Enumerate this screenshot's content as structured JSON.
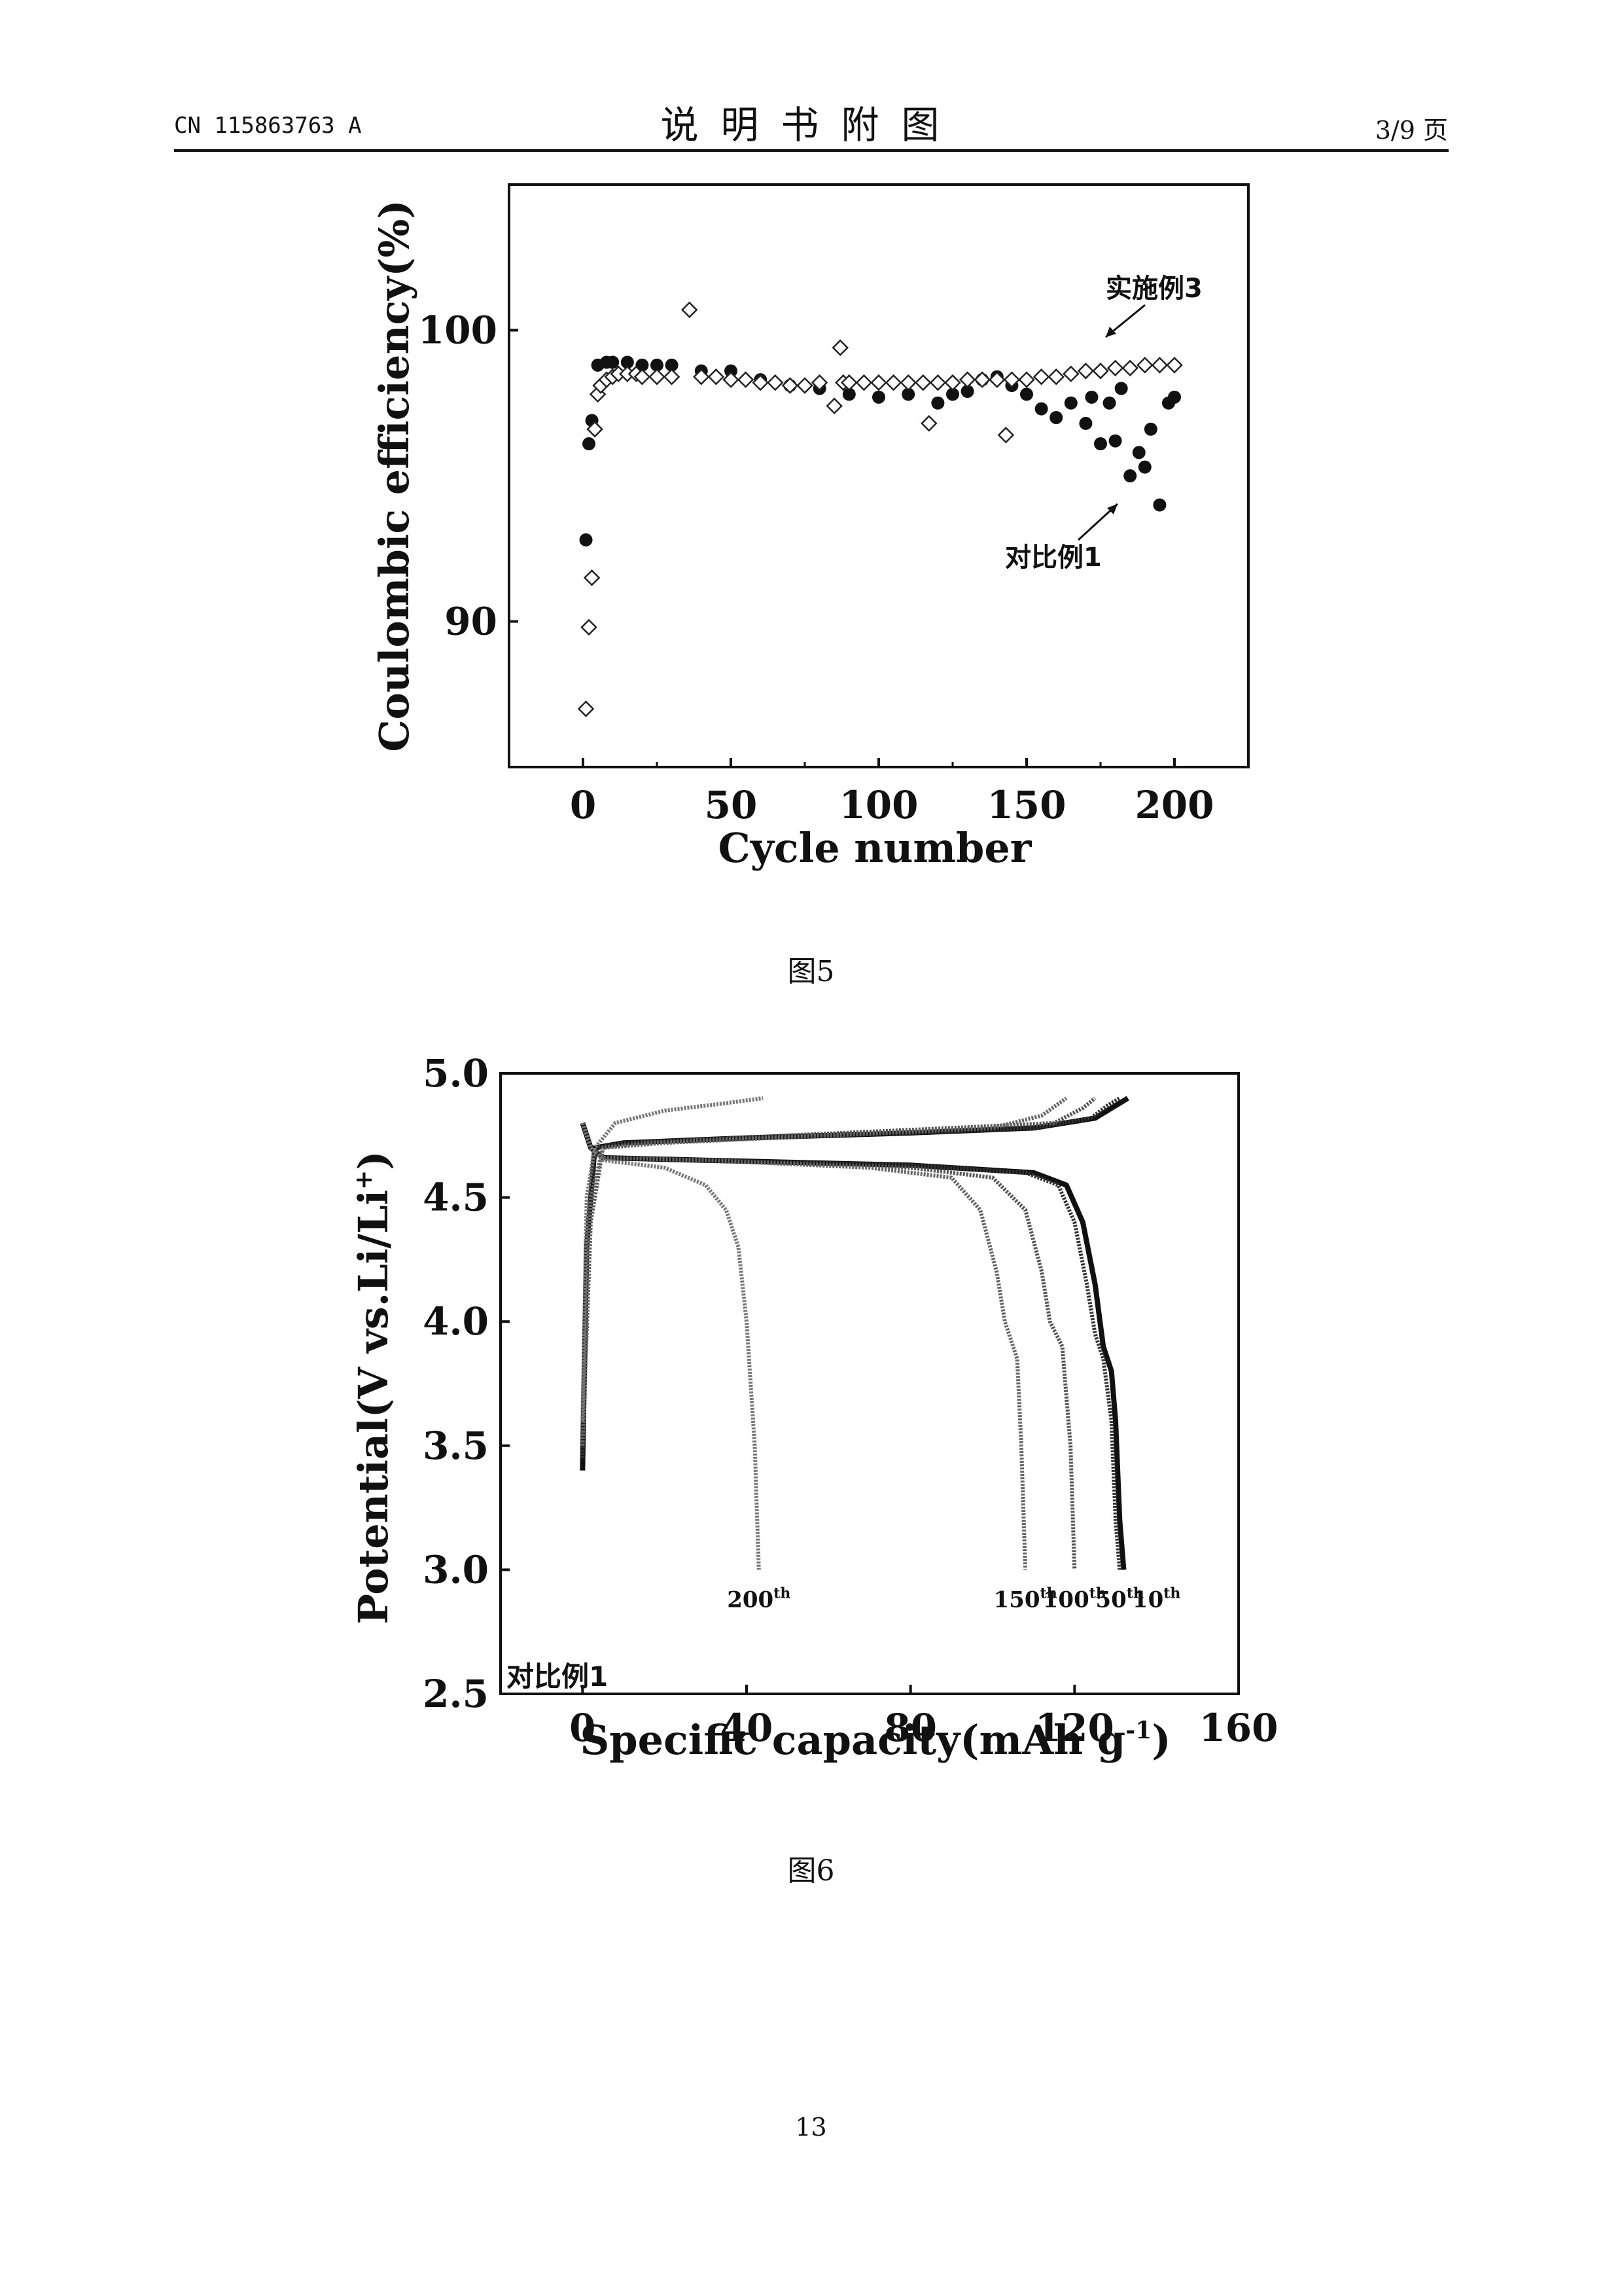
{
  "header": {
    "doc_number": "CN 115863763 A",
    "section_title": "说明书附图",
    "page_count": "3/9 页"
  },
  "figures": [
    {
      "caption": "图5",
      "chart_data": {
        "type": "scatter",
        "xlabel": "Cycle number",
        "ylabel": "Coulombic efficiency(%)",
        "xlim": [
          -25,
          225
        ],
        "ylim": [
          85,
          105
        ],
        "x_ticks": [
          "0",
          "50",
          "100",
          "150",
          "200"
        ],
        "y_ticks": [
          "90",
          "100"
        ],
        "annotations": [
          "实施例3",
          "对比例1"
        ],
        "series": [
          {
            "name": "实施例3",
            "marker": "open-diamond",
            "x": [
              1,
              2,
              3,
              4,
              5,
              6,
              8,
              10,
              12,
              15,
              18,
              20,
              25,
              30,
              36,
              40,
              45,
              50,
              55,
              60,
              65,
              70,
              75,
              80,
              85,
              87,
              88,
              90,
              95,
              100,
              105,
              110,
              115,
              117,
              120,
              125,
              130,
              135,
              140,
              143,
              145,
              150,
              155,
              160,
              165,
              170,
              175,
              180,
              185,
              190,
              195,
              200
            ],
            "y": [
              87.0,
              89.8,
              91.5,
              96.6,
              97.8,
              98.1,
              98.3,
              98.4,
              98.5,
              98.5,
              98.5,
              98.4,
              98.4,
              98.4,
              100.7,
              98.4,
              98.4,
              98.3,
              98.3,
              98.2,
              98.2,
              98.1,
              98.1,
              98.2,
              97.4,
              99.4,
              98.2,
              98.2,
              98.2,
              98.2,
              98.2,
              98.2,
              98.2,
              96.8,
              98.2,
              98.2,
              98.3,
              98.3,
              98.3,
              96.4,
              98.3,
              98.3,
              98.4,
              98.4,
              98.5,
              98.6,
              98.6,
              98.7,
              98.7,
              98.8,
              98.8,
              98.8
            ]
          },
          {
            "name": "对比例1",
            "marker": "filled-circle",
            "x": [
              1,
              2,
              3,
              5,
              8,
              10,
              15,
              20,
              25,
              30,
              40,
              50,
              60,
              70,
              80,
              90,
              100,
              110,
              120,
              125,
              130,
              135,
              140,
              145,
              150,
              155,
              160,
              165,
              170,
              172,
              175,
              178,
              180,
              182,
              185,
              188,
              190,
              192,
              195,
              198,
              200
            ],
            "y": [
              92.8,
              96.1,
              96.9,
              98.8,
              98.9,
              98.9,
              98.9,
              98.8,
              98.8,
              98.8,
              98.6,
              98.6,
              98.3,
              98.1,
              98.0,
              97.8,
              97.7,
              97.8,
              97.5,
              97.8,
              97.9,
              98.3,
              98.4,
              98.1,
              97.8,
              97.3,
              97.0,
              97.5,
              96.8,
              97.7,
              96.1,
              97.5,
              96.2,
              98.0,
              95.0,
              95.8,
              95.3,
              96.6,
              94.0,
              97.5,
              97.7
            ]
          }
        ]
      }
    },
    {
      "caption": "图6",
      "chart_data": {
        "type": "line",
        "xlabel": "Specific capacity(mAh g-1)",
        "ylabel": "Potential(V vs.Li/Li+)",
        "xlim": [
          -20,
          160
        ],
        "ylim": [
          2.5,
          5.0
        ],
        "x_ticks": [
          "0",
          "40",
          "80",
          "120",
          "160"
        ],
        "y_ticks": [
          "2.5",
          "3.0",
          "3.5",
          "4.0",
          "4.5",
          "5.0"
        ],
        "inset_label": "对比例1",
        "curve_labels": [
          {
            "cycle": "200",
            "suffix": "th",
            "x": 43
          },
          {
            "cycle": "150",
            "suffix": "th",
            "x": 108
          },
          {
            "cycle": "100",
            "suffix": "th",
            "x": 120
          },
          {
            "cycle": "50",
            "suffix": "th",
            "x": 131
          },
          {
            "cycle": "10",
            "suffix": "th",
            "x": 140
          }
        ],
        "series": [
          {
            "name": "10th",
            "charge": {
              "x": [
                0,
                1,
                3,
                10,
                40,
                80,
                110,
                125,
                130,
                133
              ],
              "y": [
                3.4,
                4.3,
                4.7,
                4.72,
                4.74,
                4.76,
                4.78,
                4.82,
                4.87,
                4.9
              ]
            },
            "discharge": {
              "x": [
                0,
                2,
                5,
                30,
                80,
                110,
                118,
                122,
                125,
                127,
                129,
                130,
                131,
                132
              ],
              "y": [
                4.8,
                4.7,
                4.66,
                4.65,
                4.63,
                4.6,
                4.55,
                4.4,
                4.15,
                3.9,
                3.8,
                3.6,
                3.2,
                3.0
              ]
            }
          },
          {
            "name": "50th",
            "charge": {
              "x": [
                0,
                1,
                3,
                10,
                40,
                80,
                110,
                124,
                128,
                131
              ],
              "y": [
                3.45,
                4.3,
                4.7,
                4.72,
                4.74,
                4.76,
                4.78,
                4.82,
                4.87,
                4.9
              ]
            },
            "discharge": {
              "x": [
                0,
                2,
                5,
                30,
                80,
                108,
                116,
                120,
                123,
                125,
                127,
                129,
                130,
                131
              ],
              "y": [
                4.8,
                4.7,
                4.66,
                4.65,
                4.63,
                4.6,
                4.55,
                4.4,
                4.15,
                3.95,
                3.85,
                3.6,
                3.2,
                3.0
              ]
            }
          },
          {
            "name": "100th",
            "charge": {
              "x": [
                0,
                2,
                5,
                15,
                50,
                90,
                115,
                122,
                125
              ],
              "y": [
                3.5,
                4.4,
                4.7,
                4.72,
                4.75,
                4.78,
                4.8,
                4.86,
                4.9
              ]
            },
            "discharge": {
              "x": [
                0,
                2,
                5,
                30,
                80,
                100,
                108,
                112,
                114,
                117,
                119,
                120
              ],
              "y": [
                4.8,
                4.7,
                4.66,
                4.65,
                4.62,
                4.58,
                4.45,
                4.2,
                4.0,
                3.9,
                3.5,
                3.0
              ]
            }
          },
          {
            "name": "150th",
            "charge": {
              "x": [
                0,
                2,
                5,
                20,
                60,
                100,
                112,
                118
              ],
              "y": [
                3.5,
                4.5,
                4.7,
                4.72,
                4.75,
                4.78,
                4.83,
                4.9
              ]
            },
            "discharge": {
              "x": [
                0,
                2,
                5,
                30,
                70,
                90,
                97,
                101,
                103,
                106,
                107,
                108
              ],
              "y": [
                4.8,
                4.7,
                4.66,
                4.65,
                4.62,
                4.58,
                4.45,
                4.2,
                4.0,
                3.85,
                3.5,
                3.0
              ]
            }
          },
          {
            "name": "200th",
            "charge": {
              "x": [
                0,
                1,
                3,
                8,
                20,
                35,
                44
              ],
              "y": [
                3.6,
                4.5,
                4.7,
                4.8,
                4.85,
                4.88,
                4.9
              ]
            },
            "discharge": {
              "x": [
                0,
                2,
                5,
                20,
                30,
                35,
                38,
                40,
                42,
                43
              ],
              "y": [
                4.8,
                4.7,
                4.65,
                4.62,
                4.55,
                4.45,
                4.3,
                4.0,
                3.5,
                3.0
              ]
            }
          }
        ]
      }
    }
  ],
  "page_number": "13"
}
